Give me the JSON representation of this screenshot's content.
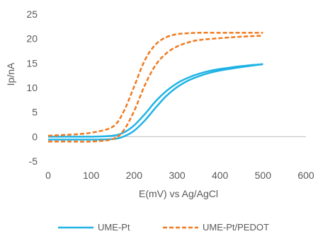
{
  "chart_data": {
    "type": "line",
    "title": "",
    "xlabel": "E(mV) vs Ag/AgCl",
    "ylabel": "Ip/nA",
    "xlim": [
      0,
      600
    ],
    "ylim": [
      -5,
      25
    ],
    "x_ticks": [
      0,
      100,
      200,
      300,
      400,
      500,
      600
    ],
    "y_ticks": [
      -5,
      0,
      5,
      10,
      15,
      20,
      25
    ],
    "grid": false,
    "legend_position": "bottom",
    "series": [
      {
        "name": "UME-Pt",
        "color": "#1fb3e5",
        "line_style": "solid",
        "branches": [
          {
            "x": [
              0,
              100,
              150,
              175,
              200,
              225,
              250,
              275,
              300,
              325,
              350,
              375,
              400,
              450,
              500
            ],
            "y": [
              0.0,
              0.0,
              0.2,
              0.8,
              2.3,
              4.6,
              7.2,
              9.3,
              10.9,
              12.0,
              12.8,
              13.4,
              13.8,
              14.4,
              14.8
            ]
          },
          {
            "x": [
              0,
              100,
              150,
              175,
              200,
              225,
              250,
              275,
              300,
              325,
              350,
              375,
              400,
              450,
              500
            ],
            "y": [
              -0.6,
              -0.6,
              -0.5,
              0.0,
              1.2,
              3.3,
              5.9,
              8.3,
              10.1,
              11.4,
              12.3,
              13.0,
              13.5,
              14.2,
              14.8
            ]
          }
        ]
      },
      {
        "name": "UME-Pt/PEDOT",
        "color": "#f07a1e",
        "line_style": "dashed",
        "branches": [
          {
            "x": [
              0,
              50,
              100,
              150,
              175,
              200,
              225,
              250,
              275,
              300,
              325,
              350,
              400,
              450,
              500
            ],
            "y": [
              0.2,
              0.4,
              0.8,
              2.0,
              5.0,
              10.2,
              15.6,
              18.8,
              20.3,
              20.9,
              21.1,
              21.2,
              21.2,
              21.2,
              21.2
            ]
          },
          {
            "x": [
              0,
              50,
              100,
              150,
              175,
              200,
              225,
              250,
              275,
              300,
              325,
              350,
              400,
              450,
              500
            ],
            "y": [
              -1.0,
              -1.0,
              -1.0,
              -0.5,
              1.2,
              5.2,
              10.5,
              14.6,
              17.0,
              18.4,
              19.2,
              19.7,
              20.1,
              20.4,
              20.6
            ]
          }
        ]
      }
    ]
  }
}
